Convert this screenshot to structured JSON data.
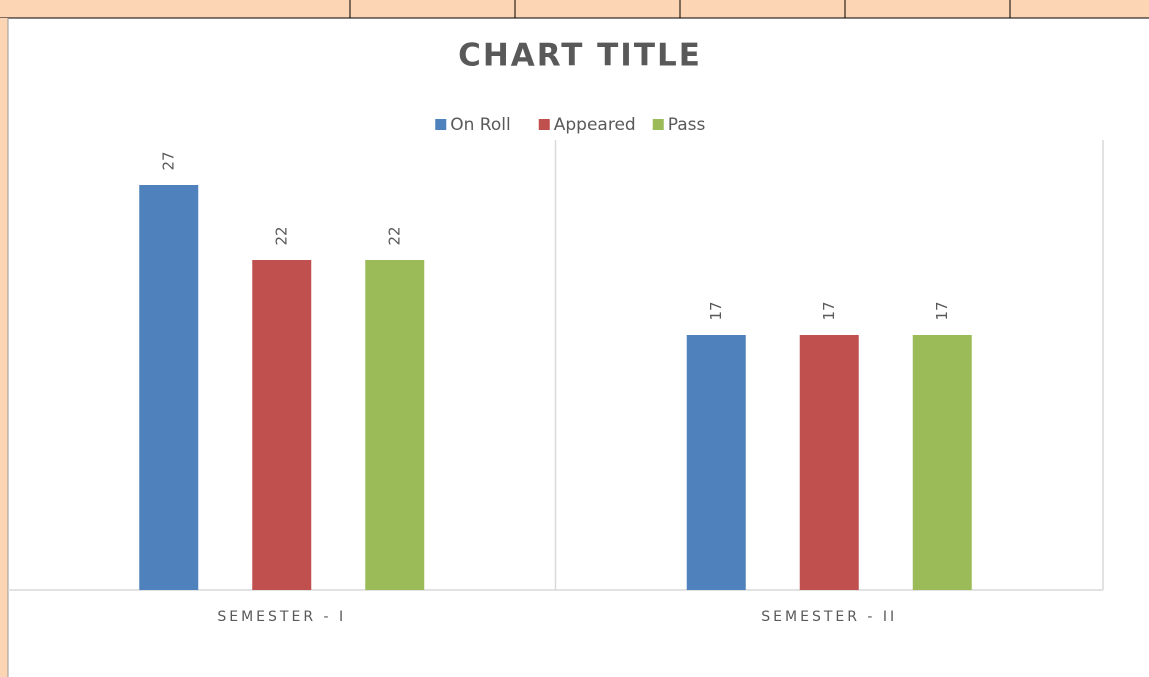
{
  "chart_data": {
    "type": "bar",
    "title": "CHART TITLE",
    "categories": [
      "SEMESTER - I",
      "SEMESTER - II"
    ],
    "series": [
      {
        "name": "On Roll",
        "color": "#4f81bd",
        "values": [
          27,
          17
        ]
      },
      {
        "name": "Appeared",
        "color": "#c0504d",
        "values": [
          22,
          17
        ]
      },
      {
        "name": "Pass",
        "color": "#9bbb59",
        "values": [
          22,
          17
        ]
      }
    ],
    "ylim": [
      0,
      30
    ],
    "legend": "top",
    "grid": false
  }
}
